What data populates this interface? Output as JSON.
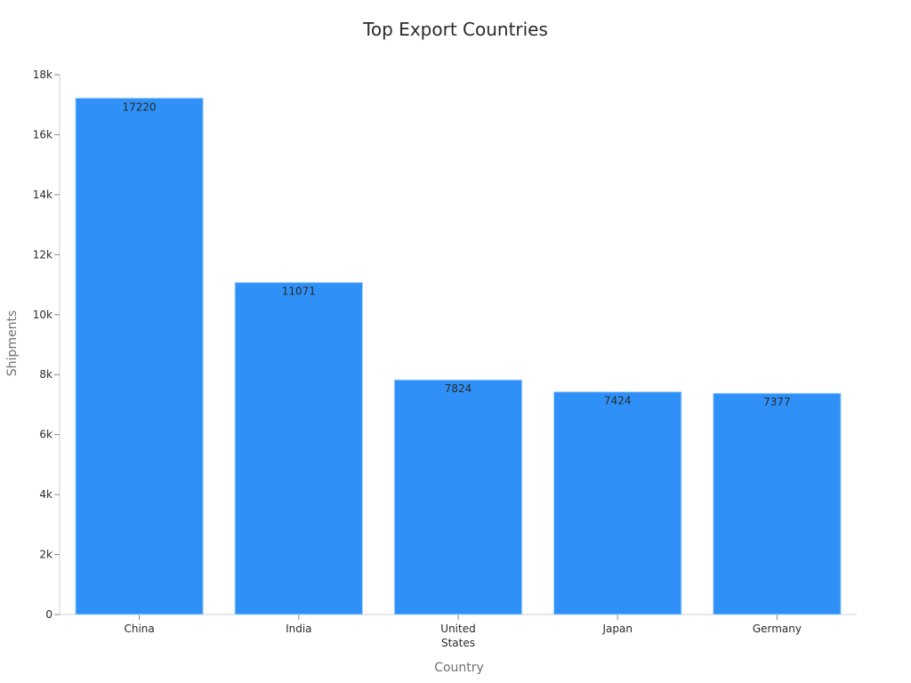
{
  "chart_data": {
    "type": "bar",
    "title": "Top Export Countries",
    "xlabel": "Country",
    "ylabel": "Shipments",
    "categories": [
      "China",
      "India",
      "United States",
      "Japan",
      "Germany"
    ],
    "category_lines": [
      [
        "China"
      ],
      [
        "India"
      ],
      [
        "United",
        "States"
      ],
      [
        "Japan"
      ],
      [
        "Germany"
      ]
    ],
    "values": [
      17220,
      11071,
      7824,
      7424,
      7377
    ],
    "data_labels": [
      "17220",
      "11071",
      "7824",
      "7424",
      "7377"
    ],
    "ylim": [
      0,
      18000
    ],
    "yticks": [
      0,
      2000,
      4000,
      6000,
      8000,
      10000,
      12000,
      14000,
      16000,
      18000
    ],
    "ytick_labels": [
      "0",
      "2k",
      "4k",
      "6k",
      "8k",
      "10k",
      "12k",
      "14k",
      "16k",
      "18k"
    ],
    "grid": false,
    "legend": "none",
    "bar_color": "#2f91f7"
  }
}
